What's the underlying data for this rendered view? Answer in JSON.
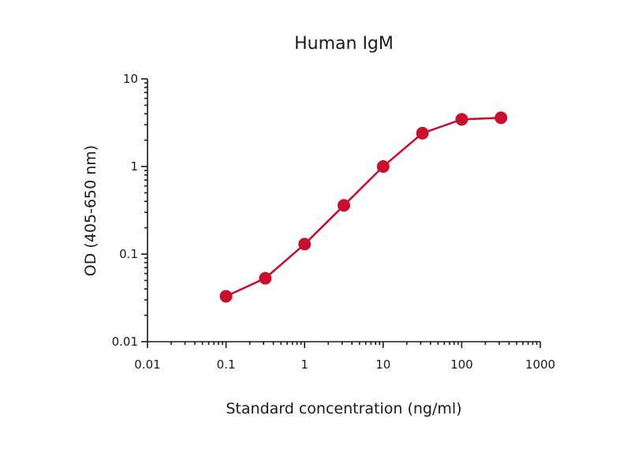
{
  "chart_data": {
    "type": "line",
    "title": "Human IgM",
    "xlabel": "Standard concentration (ng/ml)",
    "ylabel": "OD (405-650 nm)",
    "xscale": "log",
    "yscale": "log",
    "xlim": [
      0.01,
      1000
    ],
    "ylim": [
      0.01,
      10
    ],
    "xticks": [
      0.01,
      0.1,
      1,
      10,
      100,
      1000
    ],
    "xtick_labels": [
      "0.01",
      "0.1",
      "1",
      "10",
      "100",
      "1000"
    ],
    "yticks": [
      0.01,
      0.1,
      1,
      10
    ],
    "ytick_labels": [
      "0.01",
      "0.1",
      "1",
      "10"
    ],
    "grid": false,
    "legend": "none",
    "series": [
      {
        "x": [
          0.1,
          0.316,
          1,
          3.16,
          10,
          31.6,
          100,
          316
        ],
        "y": [
          0.033,
          0.053,
          0.13,
          0.36,
          1.0,
          2.4,
          3.45,
          3.6
        ],
        "color": "#c8102e"
      }
    ]
  }
}
